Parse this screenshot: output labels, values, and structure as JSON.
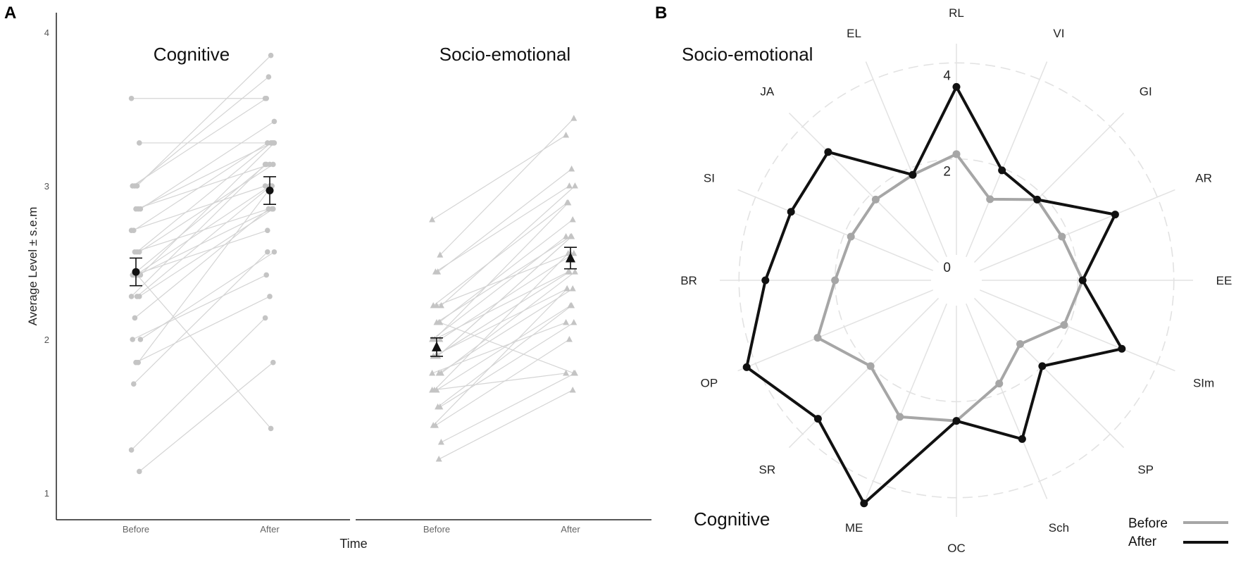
{
  "panels": {
    "a_label": "A",
    "b_label": "B"
  },
  "colors": {
    "before": "#a6a6a6",
    "after": "#111111",
    "ind_line": "#d4d4d4",
    "ind_point": "#c4c4c4",
    "grid": "#e2e2e2"
  },
  "chart_data": [
    {
      "type": "scatter",
      "title": "Cognitive",
      "xlabel": "Time",
      "ylabel": "Average Level ± s.e.m",
      "ylim": [
        0.9,
        4.1
      ],
      "yticks": [
        "1",
        "2",
        "3",
        "4"
      ],
      "categories": [
        "Before",
        "After"
      ],
      "mean": [
        2.44,
        2.97
      ],
      "sem": [
        0.09,
        0.09
      ],
      "marker": "circle",
      "pairs": [
        [
          3.57,
          3.57
        ],
        [
          3.28,
          3.28
        ],
        [
          3.0,
          3.85
        ],
        [
          3.0,
          3.71
        ],
        [
          3.0,
          3.57
        ],
        [
          2.85,
          3.42
        ],
        [
          2.85,
          3.28
        ],
        [
          2.85,
          3.14
        ],
        [
          2.71,
          3.28
        ],
        [
          2.71,
          3.0
        ],
        [
          2.57,
          3.14
        ],
        [
          2.57,
          3.28
        ],
        [
          2.57,
          2.85
        ],
        [
          2.42,
          3.14
        ],
        [
          2.42,
          3.28
        ],
        [
          2.42,
          2.85
        ],
        [
          2.42,
          3.0
        ],
        [
          2.42,
          2.71
        ],
        [
          2.28,
          3.14
        ],
        [
          2.28,
          2.85
        ],
        [
          2.28,
          3.0
        ],
        [
          2.14,
          2.85
        ],
        [
          2.0,
          2.42
        ],
        [
          2.0,
          2.57
        ],
        [
          1.85,
          3.0
        ],
        [
          1.85,
          2.28
        ],
        [
          1.71,
          2.57
        ],
        [
          1.28,
          2.14
        ],
        [
          1.14,
          1.85
        ],
        [
          2.42,
          1.42
        ]
      ]
    },
    {
      "type": "scatter",
      "title": "Socio-emotional",
      "xlabel": "Time",
      "ylabel": "",
      "ylim": [
        0.9,
        4.1
      ],
      "categories": [
        "Before",
        "After"
      ],
      "mean": [
        1.95,
        2.53
      ],
      "sem": [
        0.06,
        0.07
      ],
      "marker": "triangle",
      "pairs": [
        [
          2.78,
          3.33
        ],
        [
          2.55,
          3.44
        ],
        [
          2.44,
          3.11
        ],
        [
          2.44,
          3.0
        ],
        [
          2.22,
          2.89
        ],
        [
          2.22,
          3.0
        ],
        [
          2.11,
          2.78
        ],
        [
          2.11,
          2.67
        ],
        [
          2.0,
          2.89
        ],
        [
          2.0,
          2.67
        ],
        [
          2.0,
          2.56
        ],
        [
          1.89,
          2.67
        ],
        [
          1.89,
          2.44
        ],
        [
          1.89,
          2.33
        ],
        [
          1.78,
          2.44
        ],
        [
          1.78,
          2.33
        ],
        [
          1.67,
          2.22
        ],
        [
          1.67,
          2.56
        ],
        [
          1.67,
          1.78
        ],
        [
          1.56,
          2.11
        ],
        [
          1.56,
          2.22
        ],
        [
          1.44,
          2.0
        ],
        [
          1.44,
          2.33
        ],
        [
          1.33,
          1.78
        ],
        [
          1.22,
          1.67
        ],
        [
          2.22,
          2.56
        ],
        [
          2.0,
          2.44
        ],
        [
          1.78,
          2.11
        ],
        [
          2.11,
          1.78
        ],
        [
          1.89,
          2.67
        ]
      ]
    },
    {
      "type": "radar",
      "title_top": "Socio-emotional",
      "title_bottom": "Cognitive",
      "categories": [
        "RL",
        "VI",
        "GI",
        "AR",
        "EE",
        "SIm",
        "SP",
        "Sch",
        "OC",
        "ME",
        "SR",
        "OP",
        "BR",
        "SI",
        "JA",
        "EL"
      ],
      "rmax": 4.4,
      "r_ticks": [
        "0",
        "2",
        "4"
      ],
      "series": [
        {
          "name": "Before",
          "values": [
            2.1,
            1.3,
            1.85,
            1.85,
            2.1,
            1.9,
            1.35,
            1.8,
            2.4,
            2.55,
            2.0,
            2.6,
            2.0,
            1.85,
            1.85,
            1.85
          ]
        },
        {
          "name": "After",
          "values": [
            3.5,
            1.95,
            1.85,
            3.05,
            2.1,
            3.2,
            2.0,
            3.05,
            2.4,
            4.5,
            3.55,
            4.2,
            3.45,
            3.2,
            3.25,
            1.85
          ]
        }
      ],
      "legend": [
        "Before",
        "After"
      ]
    }
  ]
}
